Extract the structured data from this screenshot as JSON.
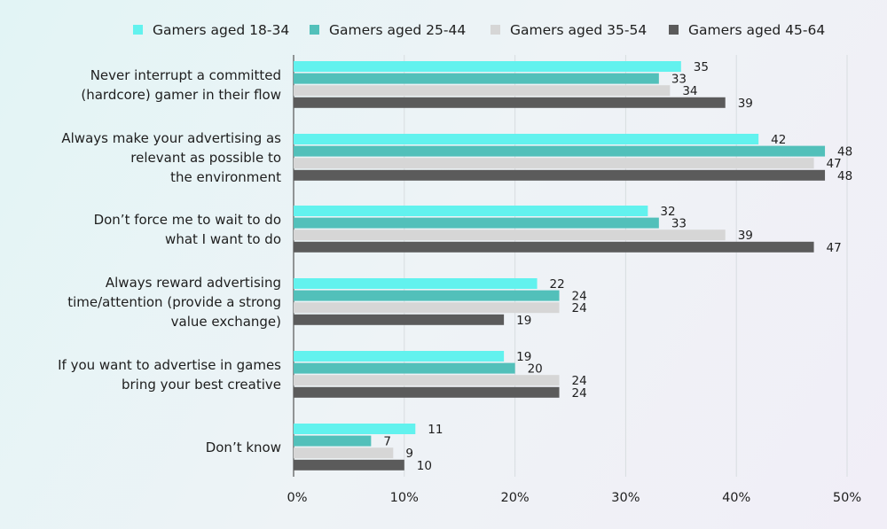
{
  "chart_data": {
    "type": "bar",
    "orientation": "horizontal",
    "categories": [
      [
        "Never interrupt a committed",
        "(hardcore) gamer in their flow"
      ],
      [
        "Always make your advertising as",
        "relevant as possible to",
        "the environment"
      ],
      [
        "Don’t force me to wait to do",
        "what I want to do"
      ],
      [
        "Always reward advertising",
        "time/attention (provide a strong",
        "value exchange)"
      ],
      [
        "If you want to advertise in games",
        "bring your best creative"
      ],
      [
        "Don’t know"
      ]
    ],
    "series": [
      {
        "name": "Gamers aged 18-34",
        "color": "#62f2ee",
        "values": [
          35,
          42,
          32,
          22,
          19,
          11
        ]
      },
      {
        "name": "Gamers aged 25-44",
        "color": "#52c0ba",
        "values": [
          33,
          48,
          33,
          24,
          20,
          7
        ]
      },
      {
        "name": "Gamers aged 35-54",
        "color": "#d6d6d6",
        "values": [
          34,
          47,
          39,
          24,
          24,
          9
        ]
      },
      {
        "name": "Gamers aged 45-64",
        "color": "#5b5b5b",
        "values": [
          39,
          48,
          47,
          19,
          24,
          10
        ]
      }
    ],
    "xlim": [
      0,
      50
    ],
    "xticks": [
      "0%",
      "10%",
      "20%",
      "30%",
      "40%",
      "50%"
    ],
    "grid": true,
    "legend": "top"
  }
}
